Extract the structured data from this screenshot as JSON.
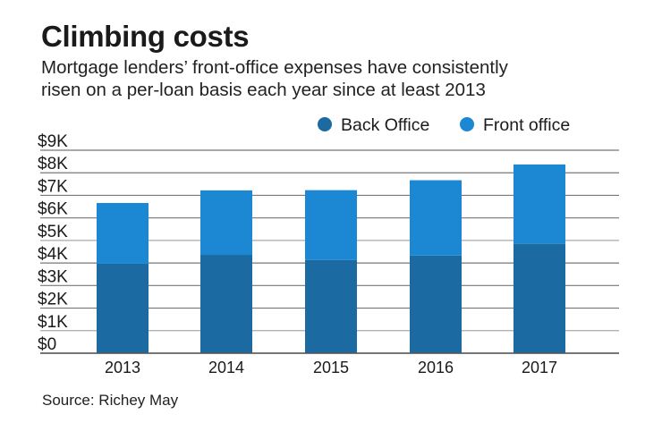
{
  "title": "Climbing costs",
  "subtitle_lines": [
    "Mortgage lenders’ front-office expenses have consistently",
    "risen on a per-loan basis each year since at least 2013"
  ],
  "source": "Source: Richey May",
  "chart_data": {
    "type": "bar",
    "stacked": true,
    "title": "Climbing costs",
    "xlabel": "",
    "ylabel": "",
    "categories": [
      "2013",
      "2014",
      "2015",
      "2016",
      "2017"
    ],
    "series": [
      {
        "name": "Back Office",
        "color": "#1b6aa2",
        "values": [
          3970,
          4360,
          4130,
          4330,
          4850
        ]
      },
      {
        "name": "Front office",
        "color": "#1c87d2",
        "values": [
          2690,
          2860,
          3100,
          3340,
          3520
        ]
      }
    ],
    "ylim": [
      0,
      9000
    ],
    "yticks": [
      0,
      1000,
      2000,
      3000,
      4000,
      5000,
      6000,
      7000,
      8000,
      9000
    ],
    "ytick_labels": [
      "$0",
      "$1K",
      "$2K",
      "$3K",
      "$4K",
      "$5K",
      "$6K",
      "$7K",
      "$8K",
      "$9K"
    ],
    "grid": true,
    "legend_position": "top-right"
  }
}
